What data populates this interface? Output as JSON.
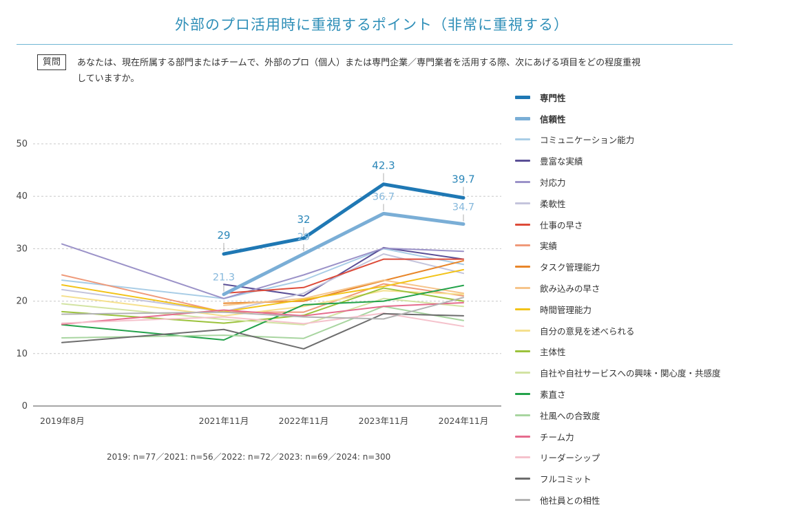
{
  "title": "外部のプロ活用時に重視するポイント（非常に重視する）",
  "question_label": "質問",
  "question_text": "あなたは、現在所属する部門またはチームで、外部のプロ（個人）または専門企業／専門業者を活用する際、次にあげる項目をどの程度重視していますか。",
  "sample_note": "2019: n=77／2021: n=56／2022: n=72／2023: n=69／2024: n=300",
  "chart_data": {
    "type": "line",
    "title": "外部のプロ活用時に重視するポイント（非常に重視する）",
    "xlabel": "",
    "ylabel": "",
    "categories": [
      "2019年8月",
      "2021年11月",
      "2022年11月",
      "2023年11月",
      "2024年11月"
    ],
    "ylim": [
      0,
      50
    ],
    "yticks": [
      0,
      10,
      20,
      30,
      40,
      50
    ],
    "grid": true,
    "legend_position": "right",
    "series": [
      {
        "name": "専門性",
        "color": "#1f78b4",
        "emphasis": "primary",
        "values": [
          null,
          29,
          32,
          42.3,
          39.7
        ],
        "labels": [
          "",
          "29",
          "32",
          "42.3",
          "39.7"
        ]
      },
      {
        "name": "信頼性",
        "color": "#7aaed6",
        "emphasis": "secondary",
        "values": [
          null,
          21.3,
          29,
          36.7,
          34.7
        ],
        "labels": [
          "",
          "21.3",
          "29",
          "36.7",
          "34.7"
        ]
      },
      {
        "name": "コミュニケーション能力",
        "color": "#a9cde6",
        "values": [
          24,
          20.5,
          24,
          30,
          27
        ]
      },
      {
        "name": "豊富な実績",
        "color": "#5a4f96",
        "values": [
          null,
          23.2,
          21,
          30.2,
          28
        ]
      },
      {
        "name": "対応力",
        "color": "#9b92c8",
        "values": [
          30.9,
          20.5,
          25,
          30.1,
          29.5
        ]
      },
      {
        "name": "柔軟性",
        "color": "#c4c4dc",
        "values": [
          22.2,
          18,
          21.5,
          29,
          25.3
        ]
      },
      {
        "name": "仕事の早さ",
        "color": "#dd4b39",
        "values": [
          null,
          21.5,
          22.6,
          28,
          28
        ]
      },
      {
        "name": "実績",
        "color": "#ef9a7a",
        "values": [
          25,
          17.9,
          17.9,
          23.3,
          21
        ]
      },
      {
        "name": "タスク管理能力",
        "color": "#e8862a",
        "values": [
          null,
          19.6,
          20,
          23.9,
          27.7
        ]
      },
      {
        "name": "飲み込みの早さ",
        "color": "#f6c48a",
        "values": [
          null,
          19.2,
          20.5,
          24,
          21.5
        ]
      },
      {
        "name": "時間管理能力",
        "color": "#f2c318",
        "values": [
          23.1,
          18,
          20.3,
          22.8,
          26
        ]
      },
      {
        "name": "自分の意見を述べられる",
        "color": "#f5e08e",
        "values": [
          21,
          17.2,
          19,
          22,
          21.3
        ]
      },
      {
        "name": "主体性",
        "color": "#9bc23c",
        "values": [
          18,
          15.8,
          17.3,
          22.5,
          20
        ]
      },
      {
        "name": "自社や自社サービスへの興味・関心度・共感度",
        "color": "#d2e3a2",
        "values": [
          19.5,
          16.5,
          15.5,
          20.5,
          19
        ]
      },
      {
        "name": "素直さ",
        "color": "#22a24a",
        "values": [
          15.5,
          12.6,
          19.3,
          20,
          23
        ]
      },
      {
        "name": "社風への合致度",
        "color": "#a8d5a0",
        "values": [
          13,
          13.5,
          12.9,
          19,
          16.3
        ]
      },
      {
        "name": "チーム力",
        "color": "#e56b8d",
        "values": [
          15.6,
          18.3,
          17.2,
          19,
          19.7
        ]
      },
      {
        "name": "リーダーシップ",
        "color": "#f5c2cc",
        "values": [
          15.8,
          17,
          15.7,
          17.7,
          15.2
        ]
      },
      {
        "name": "フルコミット",
        "color": "#6d6d6d",
        "values": [
          12.1,
          14.6,
          10.9,
          17.6,
          17.2
        ]
      },
      {
        "name": "他社員との相性",
        "color": "#b3b3b3",
        "values": [
          17.5,
          17.9,
          17,
          16.6,
          20.7
        ]
      }
    ]
  }
}
